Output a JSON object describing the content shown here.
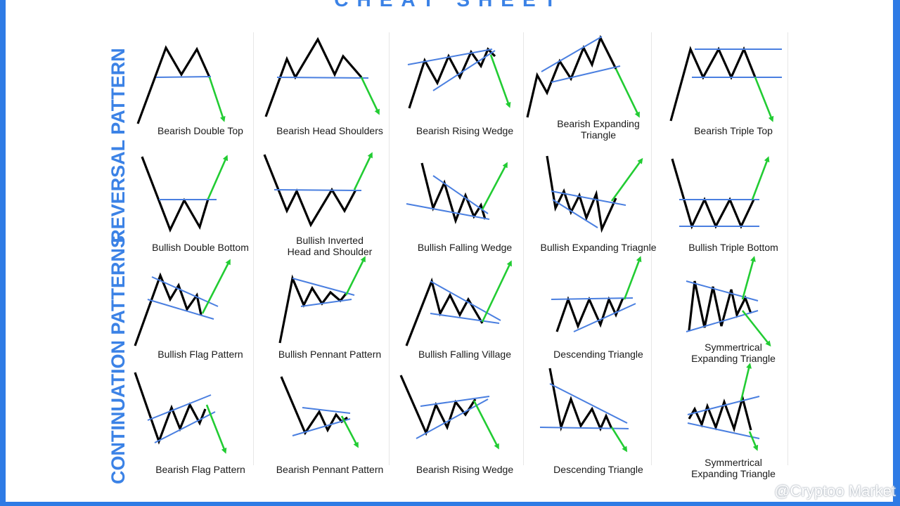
{
  "title": "CHEAT SHEET",
  "sections": [
    {
      "label": "REVERSAL PATTERN"
    },
    {
      "label": "CONTINUATION PATTERNS"
    }
  ],
  "patterns": [
    {
      "label": "Bearish Double Top"
    },
    {
      "label": "Bearish Head Shoulders"
    },
    {
      "label": "Bearish Rising Wedge"
    },
    {
      "label": "Bearish Expanding\nTriangle"
    },
    {
      "label": "Bearish Triple Top"
    },
    {
      "label": "Bullish Double Bottom"
    },
    {
      "label": "Bullish Inverted\nHead and Shoulder"
    },
    {
      "label": "Bullish Falling Wedge"
    },
    {
      "label": "Bullish Expanding Triagnle"
    },
    {
      "label": "Bullish Triple Bottom"
    },
    {
      "label": "Bullish Flag Pattern"
    },
    {
      "label": "Bullish Pennant Pattern"
    },
    {
      "label": "Bullish Falling Village"
    },
    {
      "label": "Descending Triangle"
    },
    {
      "label": "Symmertrical\nExpanding Triangle"
    },
    {
      "label": "Bearish Flag Pattern"
    },
    {
      "label": "Bearish Pennant Pattern"
    },
    {
      "label": "Bearish Rising Wedge"
    },
    {
      "label": "Descending Triangle"
    },
    {
      "label": "Symmertrical\nExpanding Triangle"
    }
  ],
  "colors": {
    "price": "#000000",
    "trendline": "#4a7fe0",
    "arrow": "#22cc33",
    "accent": "#3b82e6"
  },
  "watermark": {
    "text": "@Cryptoo Market",
    "icon": "cube-icon"
  }
}
